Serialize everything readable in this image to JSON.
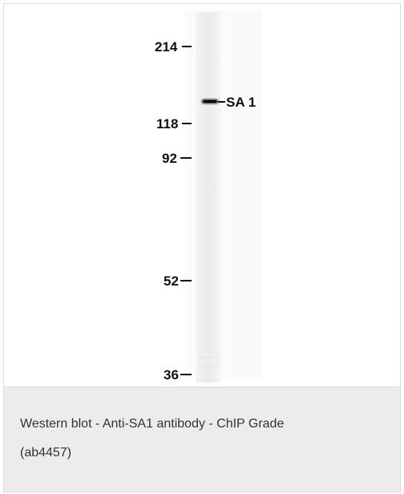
{
  "figure": {
    "type": "western-blot",
    "markers": [
      {
        "label": "214",
        "kda": 214
      },
      {
        "label": "118",
        "kda": 118
      },
      {
        "label": "92",
        "kda": 92
      },
      {
        "label": "52",
        "kda": 52
      },
      {
        "label": "36",
        "kda": 36
      }
    ],
    "band_label": "SA 1"
  },
  "caption": {
    "line1": "Western blot - Anti-SA1 antibody - ChIP Grade",
    "line2": "(ab4457)"
  },
  "colors": {
    "caption_background": "#ececec",
    "border": "#dddddd",
    "text": "#333333"
  }
}
